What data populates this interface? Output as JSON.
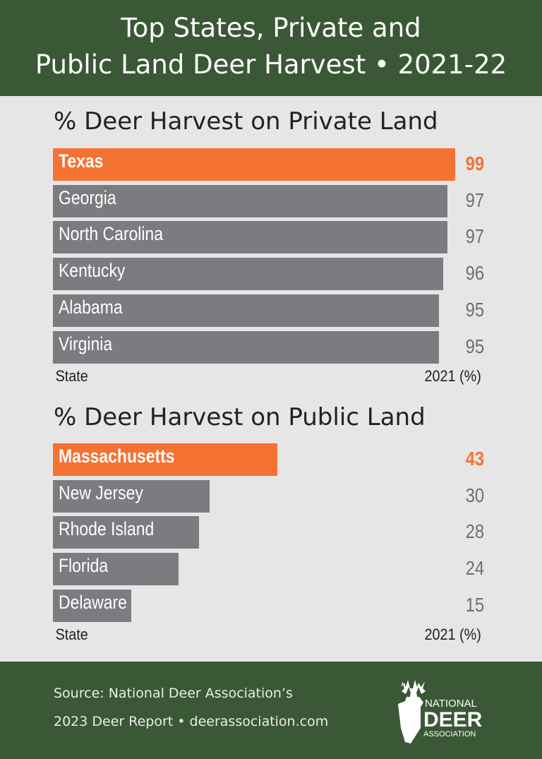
{
  "title_line1": "Top States, Private and",
  "title_line2": "Public Land Deer Harvest • 2021-22",
  "colors": {
    "header": "#3b5836",
    "highlight": "#f47232",
    "bar": "#7a7c7f",
    "background": "#e6e6e6"
  },
  "chart_data": [
    {
      "type": "bar",
      "orientation": "horizontal",
      "title": "% Deer Harvest on Private Land",
      "xlabel": "2021 (%)",
      "ylabel": "State",
      "categories": [
        "Texas",
        "Georgia",
        "North Carolina",
        "Kentucky",
        "Alabama",
        "Virginia"
      ],
      "values": [
        99,
        97,
        97,
        96,
        95,
        95
      ],
      "highlight": "Texas"
    },
    {
      "type": "bar",
      "orientation": "horizontal",
      "title": "% Deer Harvest on Public Land",
      "xlabel": "2021 (%)",
      "ylabel": "State",
      "categories": [
        "Massachusetts",
        "New Jersey",
        "Rhode Island",
        "Florida",
        "Delaware"
      ],
      "values": [
        43,
        30,
        28,
        24,
        15
      ],
      "highlight": "Massachusetts"
    }
  ],
  "footer": {
    "source_line1": "Source: National Deer Association’s",
    "source_line2": "2023 Deer Report • deerassociation.com",
    "logo_text": [
      "NATIONAL",
      "DEER",
      "ASSOCIATION"
    ]
  }
}
